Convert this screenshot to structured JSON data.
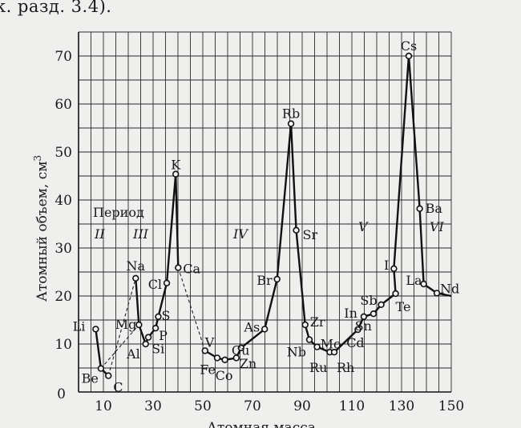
{
  "page": {
    "caption": "к. разд. 3.4)."
  },
  "chart_data": {
    "type": "line",
    "title": "",
    "xlabel": "Атомная масса",
    "ylabel": "Атомный объем, см",
    "ylabel_sup": "3",
    "xlim": [
      0,
      150
    ],
    "ylim": [
      0,
      75
    ],
    "xticks": [
      10,
      30,
      50,
      70,
      90,
      110,
      130,
      150
    ],
    "yticks": [
      10,
      20,
      30,
      40,
      50,
      60,
      70
    ],
    "origin_label": "0",
    "grid": true,
    "series": [
      {
        "points": [
          {
            "label": "Li",
            "x": 6.9,
            "y": 13.1
          },
          {
            "label": "Be",
            "x": 9.0,
            "y": 4.9
          },
          {
            "label": "C",
            "x": 12.0,
            "y": 3.4
          },
          {
            "label": "Na",
            "x": 23.0,
            "y": 23.7
          },
          {
            "label": "Mg",
            "x": 24.3,
            "y": 14.0
          },
          {
            "label": "Al",
            "x": 27.0,
            "y": 10.0
          },
          {
            "label": "Si",
            "x": 28.1,
            "y": 11.4
          },
          {
            "label": "P",
            "x": 31.0,
            "y": 13.3
          },
          {
            "label": "S",
            "x": 32.1,
            "y": 15.7
          },
          {
            "label": "Cl",
            "x": 35.5,
            "y": 22.7
          },
          {
            "label": "K",
            "x": 39.1,
            "y": 45.4
          },
          {
            "label": "Ca",
            "x": 40.1,
            "y": 25.9
          },
          {
            "label": "V",
            "x": 50.9,
            "y": 8.6
          },
          {
            "label": "Fe",
            "x": 55.8,
            "y": 7.1
          },
          {
            "label": "Co",
            "x": 58.9,
            "y": 6.7
          },
          {
            "label": "Cu",
            "x": 63.5,
            "y": 7.1
          },
          {
            "label": "Zn",
            "x": 65.4,
            "y": 9.2
          },
          {
            "label": "As",
            "x": 74.9,
            "y": 13.1
          },
          {
            "label": "Br",
            "x": 79.9,
            "y": 23.5
          },
          {
            "label": "Rb",
            "x": 85.5,
            "y": 55.9
          },
          {
            "label": "Sr",
            "x": 87.6,
            "y": 33.7
          },
          {
            "label": "Zr",
            "x": 91.2,
            "y": 14.0
          },
          {
            "label": "Nb",
            "x": 92.9,
            "y": 10.9
          },
          {
            "label": "Mo",
            "x": 96.0,
            "y": 9.4
          },
          {
            "label": "Ru",
            "x": 101.1,
            "y": 8.3
          },
          {
            "label": "Rh",
            "x": 102.9,
            "y": 8.3
          },
          {
            "label": "Cd",
            "x": 112.4,
            "y": 13.0
          },
          {
            "label": "In",
            "x": 114.8,
            "y": 15.7
          },
          {
            "label": "Sn",
            "x": 118.7,
            "y": 16.3
          },
          {
            "label": "Sb",
            "x": 121.8,
            "y": 18.2
          },
          {
            "label": "Te",
            "x": 127.6,
            "y": 20.5
          },
          {
            "label": "I",
            "x": 126.9,
            "y": 25.7
          },
          {
            "label": "Cs",
            "x": 132.9,
            "y": 70.0
          },
          {
            "label": "Ba",
            "x": 137.3,
            "y": 38.2
          },
          {
            "label": "La",
            "x": 138.9,
            "y": 22.5
          },
          {
            "label": "Nd",
            "x": 144.2,
            "y": 20.6
          },
          {
            "label": "",
            "x": 150.0,
            "y": 20.0
          }
        ]
      }
    ],
    "annotations": {
      "period_title": "Период",
      "periods": [
        "II",
        "III",
        "IV",
        "V",
        "VI"
      ]
    }
  }
}
